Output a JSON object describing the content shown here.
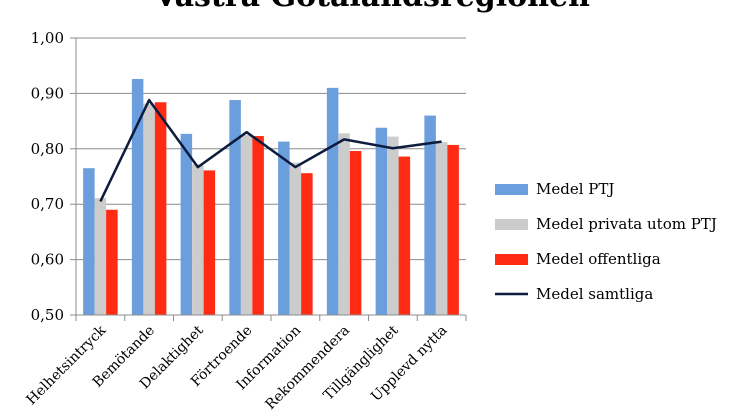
{
  "chart_data": {
    "type": "bar",
    "title": "Västra Götalandsregionen",
    "categories": [
      "Helhetsintryck",
      "Bemötande",
      "Delaktighet",
      "Förtroende",
      "Information",
      "Rekommendera",
      "Tillgänglighet",
      "Upplevd nytta"
    ],
    "ylim": [
      0.5,
      1.0
    ],
    "yticks": [
      "0,50",
      "0,60",
      "0,70",
      "0,80",
      "0,90",
      "1,00"
    ],
    "grid": true,
    "legend_position": "right",
    "series": [
      {
        "name": "Medel PTJ",
        "kind": "bar",
        "color": "#6a9edc",
        "values": [
          0.765,
          0.926,
          0.827,
          0.888,
          0.813,
          0.91,
          0.838,
          0.86
        ]
      },
      {
        "name": "Medel privata utom PTJ",
        "kind": "bar",
        "color": "#cccccc",
        "values": [
          0.711,
          0.882,
          0.772,
          0.825,
          0.775,
          0.828,
          0.822,
          0.812
        ]
      },
      {
        "name": "Medel offentliga",
        "kind": "bar",
        "color": "#ff2b12",
        "values": [
          0.69,
          0.884,
          0.761,
          0.823,
          0.756,
          0.796,
          0.786,
          0.807
        ]
      },
      {
        "name": "Medel samtliga",
        "kind": "line",
        "color": "#0d1b3e",
        "values": [
          0.705,
          0.888,
          0.767,
          0.83,
          0.767,
          0.817,
          0.801,
          0.813
        ]
      }
    ]
  }
}
